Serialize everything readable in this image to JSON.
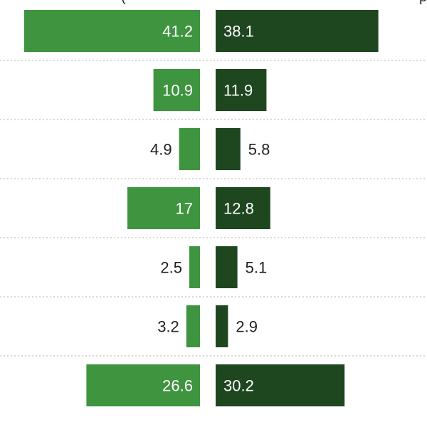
{
  "chart_data": {
    "type": "bar",
    "orientation": "horizontal-diverging",
    "grid": "dotted horizontal separators",
    "legend": "none",
    "colors": {
      "left_series": "#3f943f",
      "right_series": "#1e4720",
      "label_inside": "#ffffff",
      "label_outside": "#222222",
      "separator": "#cccccc"
    },
    "series": [
      {
        "values": [
          41.2,
          10.9,
          4.9,
          17,
          2.5,
          3.2,
          26.6
        ]
      },
      {
        "values": [
          38.1,
          11.9,
          5.8,
          12.8,
          5.1,
          2.9,
          30.2
        ]
      }
    ],
    "header_fragments": {
      "left": "(",
      "right": "p"
    }
  }
}
